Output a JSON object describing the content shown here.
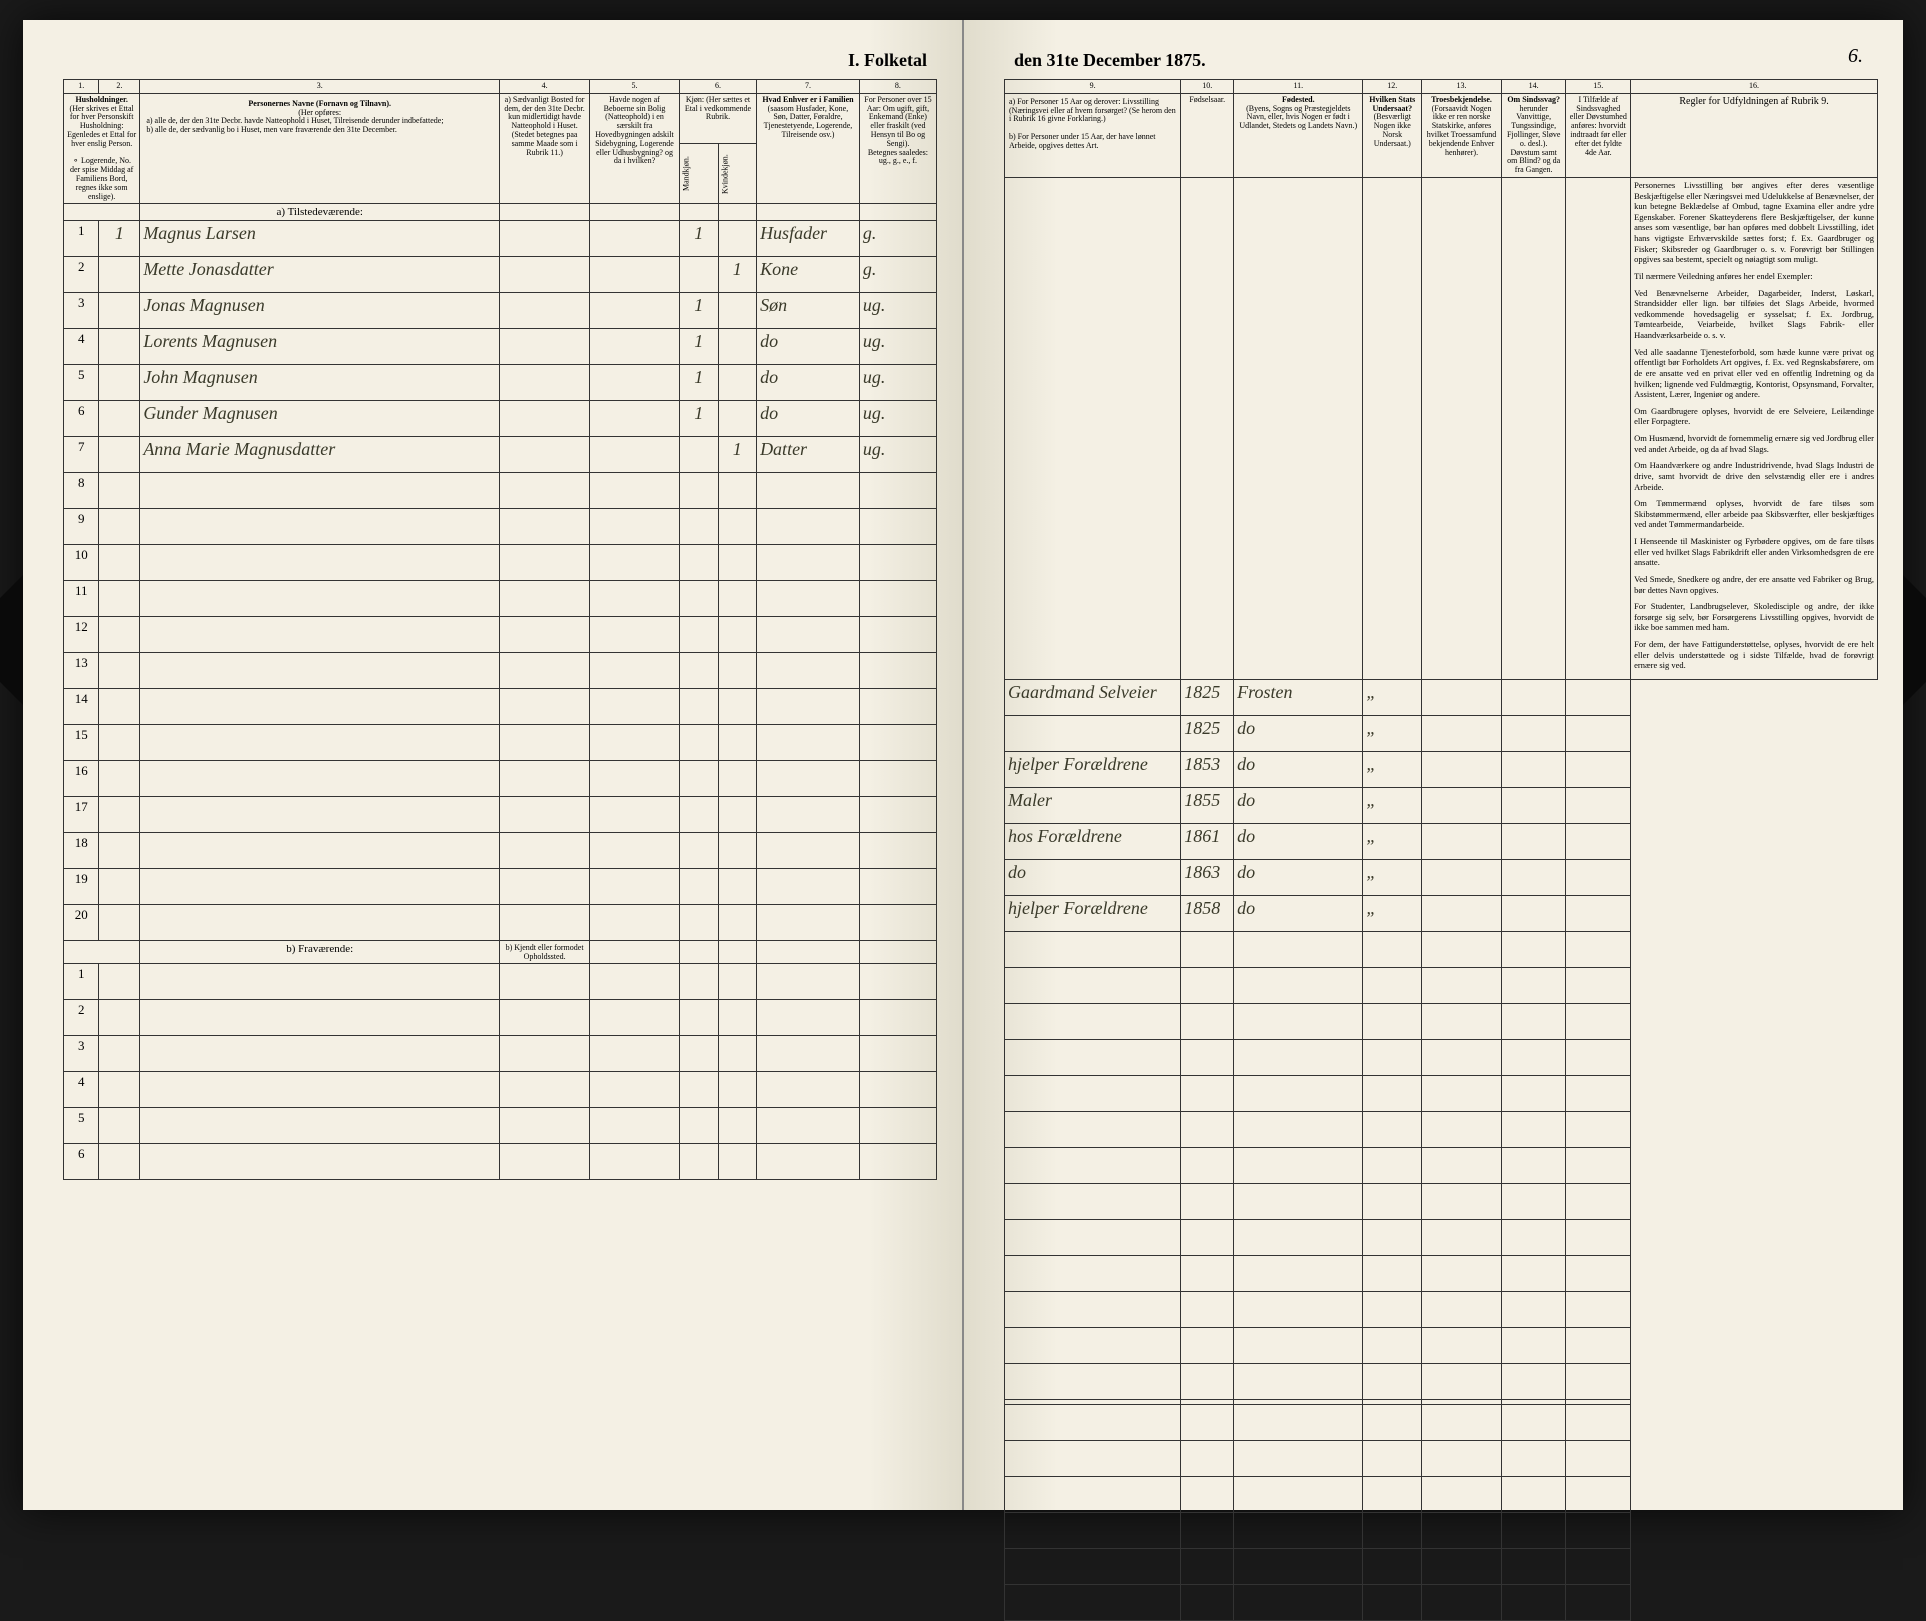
{
  "document": {
    "title_left": "I.  Folketal",
    "title_right": "den 31te December 1875.",
    "page_number_right": "6."
  },
  "columns": {
    "c1": "1.",
    "c2": "2.",
    "c3": "3.",
    "c4": "4.",
    "c5": "5.",
    "c6": "6.",
    "c7": "7.",
    "c8": "8.",
    "c9": "9.",
    "c10": "10.",
    "c11": "11.",
    "c12": "12.",
    "c13": "13.",
    "c14": "14.",
    "c15": "15.",
    "c16": "16."
  },
  "headers": {
    "h1": "Husholdninger.",
    "h1_sub": "(Her skrives et Ettal for hver Personskift Husholdning: Egenledes et Ettal for hver enslig Person.",
    "h1_note": "⚬ Logerende, No. der spise Middag af Familiens Bord, regnes ikke som enslige).",
    "h3_title": "Personernes Navne (Fornavn og Tilnavn).",
    "h3_sub": "(Her opføres:",
    "h3_a": "a) alle de, der den 31te Decbr. havde Natteophold i Huset, Tilreisende derunder indbefattede;",
    "h3_b": "b) alle de, der sædvanlig bo i Huset, men vare fraværende den 31te December.",
    "h4_a": "a) Sædvanligt Bosted for dem, der den 31te Decbr. kun midlertidigt havde Natteophold i Huset.",
    "h4_note": "(Stedet betegnes paa samme Maade som i Rubrik 11.)",
    "h5": "Havde nogen af Beboerne sin Bolig (Natteophold) i en særskilt fra Hovedbygningen adskilt Sidebygning, Logerende eller Udhusbygning? og da i hvilken?",
    "h6": "Kjøn: (Her sættes et Etal i vedkommende Rubrik.",
    "h6_m": "Mandkjøn.",
    "h6_k": "Kvindekjøn.",
    "h7": "Hvad Enhver er i Familien",
    "h7_sub": "(saasom Husfader, Kone, Søn, Datter, Føraldre, Tjenestetyende, Logerende, Tilreisende osv.)",
    "h8": "For Personer over 15 Aar: Om ugift, gift, Enkemand (Enke) eller fraskilt (ved Hensyn til Bo og Sengi).",
    "h8_sub": "Betegnes saaledes: ug., g., e., f.",
    "h9_a": "a) For Personer 15 Aar og derover: Livsstilling (Næringsvei eller af hvem forsørget? (Se herom den i Rubrik 16 givne Forklaring.)",
    "h9_b": "b) For Personer under 15 Aar, der have lønnet Arbeide, opgives dettes Art.",
    "h10": "Fødselsaar.",
    "h11": "Fødested.",
    "h11_sub": "(Byens, Sogns og Præstegjeldets Navn, eller, hvis Nogen er født i Udlandet, Stedets og Landets Navn.)",
    "h12": "Hvilken Stats Undersaat?",
    "h12_sub": "(Besværligt Nogen ikke Norsk Undersaat.)",
    "h13": "Troesbekjendelse.",
    "h13_sub": "(Forsaavidt Nogen ikke er ren norske Statskirke, anføres hvilket Troessamfund bekjendende Enhver henhører).",
    "h14": "Om Sindssvag?",
    "h14_sub": "herunder Vanvittige, Tungssindige, Fjollinger, Sløve o. desl.). Døvstum samt om Blind? og da fra Gangen.",
    "h15": "I Tilfælde af Sindssvaghed eller Døvstumhed anføres: hvorvidt indtraadt før eller efter det fyldte 4de Aar.",
    "h16": "Regler for Udfyldningen af Rubrik 9."
  },
  "sections": {
    "present": "a)  Tilstedeværende:",
    "absent": "b)  Fraværende:",
    "absent_col": "b) Kjendt eller formodet Opholdssted."
  },
  "present_rows": [
    {
      "n": "1",
      "hh": "1",
      "name": "Magnus Larsen",
      "c4": "",
      "c5": "",
      "m": "1",
      "k": "",
      "rel": "Husfader",
      "ms": "g.",
      "occ": "Gaardmand Selveier",
      "yr": "1825",
      "bp": "Frosten",
      "h12": "„",
      "h13": "",
      "h14": "",
      "h15": ""
    },
    {
      "n": "2",
      "hh": "",
      "name": "Mette Jonasdatter",
      "c4": "",
      "c5": "",
      "m": "",
      "k": "1",
      "rel": "Kone",
      "ms": "g.",
      "occ": "",
      "yr": "1825",
      "bp": "do",
      "h12": "„",
      "h13": "",
      "h14": "",
      "h15": ""
    },
    {
      "n": "3",
      "hh": "",
      "name": "Jonas Magnusen",
      "c4": "",
      "c5": "",
      "m": "1",
      "k": "",
      "rel": "Søn",
      "ms": "ug.",
      "occ": "hjelper Forældrene",
      "yr": "1853",
      "bp": "do",
      "h12": "„",
      "h13": "",
      "h14": "",
      "h15": ""
    },
    {
      "n": "4",
      "hh": "",
      "name": "Lorents Magnusen",
      "c4": "",
      "c5": "",
      "m": "1",
      "k": "",
      "rel": "do",
      "ms": "ug.",
      "occ": "Maler",
      "yr": "1855",
      "bp": "do",
      "h12": "„",
      "h13": "",
      "h14": "",
      "h15": ""
    },
    {
      "n": "5",
      "hh": "",
      "name": "John Magnusen",
      "c4": "",
      "c5": "",
      "m": "1",
      "k": "",
      "rel": "do",
      "ms": "ug.",
      "occ": "hos Forældrene",
      "yr": "1861",
      "bp": "do",
      "h12": "„",
      "h13": "",
      "h14": "",
      "h15": ""
    },
    {
      "n": "6",
      "hh": "",
      "name": "Gunder Magnusen",
      "c4": "",
      "c5": "",
      "m": "1",
      "k": "",
      "rel": "do",
      "ms": "ug.",
      "occ": "do",
      "yr": "1863",
      "bp": "do",
      "h12": "„",
      "h13": "",
      "h14": "",
      "h15": ""
    },
    {
      "n": "7",
      "hh": "",
      "name": "Anna Marie Magnusdatter",
      "c4": "",
      "c5": "",
      "m": "",
      "k": "1",
      "rel": "Datter",
      "ms": "ug.",
      "occ": "hjelper Forældrene",
      "yr": "1858",
      "bp": "do",
      "h12": "„",
      "h13": "",
      "h14": "",
      "h15": ""
    }
  ],
  "empty_present_rows": [
    "8",
    "9",
    "10",
    "11",
    "12",
    "13",
    "14",
    "15",
    "16",
    "17",
    "18",
    "19",
    "20"
  ],
  "absent_rows": [
    "1",
    "2",
    "3",
    "4",
    "5",
    "6"
  ],
  "instructions": {
    "p1": "Personernes Livsstilling bør angives efter deres væsentlige Beskjæftigelse eller Næringsvei med Udelukkelse af Benævnelser, der kun betegne Beklædelse af Ombud, tagne Examina eller andre ydre Egenskaber. Forener Skatteyderens flere Beskjæftigelser, der kunne anses som væsentlige, bør han opføres med dobbelt Livsstilling, idet hans vigtigste Erhværvskilde sættes forst; f. Ex. Gaardbruger og Fisker; Skibsreder og Gaardbruger o. s. v. Forøvrigt bør Stillingen opgives saa bestemt, specielt og nøiagtigt som muligt.",
    "p2": "Til nærmere Veiledning anføres her endel Exempler:",
    "p3": "Ved Benævnelserne Arbeider, Dagarbeider, Inderst, Løskarl, Strandsidder eller lign. bør tilføies det Slags Arbeide, hvormed vedkommende hovedsagelig er sysselsat; f. Ex. Jordbrug, Tømtearbeide, Veiarbeide, hvilket Slags Fabrik- eller Haandværksarbeide o. s. v.",
    "p4": "Ved alle saadanne Tjenesteforbold, som hæde kunne være privat og offentligt bør Forholdets Art opgives, f. Ex. ved Regnskabsførere, om de ere ansatte ved en privat eller ved en offentlig Indretning og da hvilken; lignende ved Fuldmægtig, Kontorist, Opsynsmand, Forvalter, Assistent, Lærer, Ingeniør og andere.",
    "p5": "Om Gaardbrugere oplyses, hvorvidt de ere Selveiere, Leilændinge eller Forpagtere.",
    "p6": "Om Husmænd, hvorvidt de fornemmelig ernære sig ved Jordbrug eller ved andet Arbeide, og da af hvad Slags.",
    "p7": "Om Haandværkere og andre Industridrivende, hvad Slags Industri de drive, samt hvorvidt de drive den selvstændig eller ere i andres Arbeide.",
    "p8": "Om Tømmermænd oplyses, hvorvidt de fare tilsøs som Skibstømmermænd, eller arbeide paa Skibsværfter, eller beskjæftiges ved andet Tømmermandarbeide.",
    "p9": "I Henseende til Maskinister og Fyrbødere opgives, om de fare tilsøs eller ved hvilket Slags Fabrikdrift eller anden Virksomhedsgren de ere ansatte.",
    "p10": "Ved Smede, Snedkere og andre, der ere ansatte ved Fabriker og Brug, bør dettes Navn opgives.",
    "p11": "For Studenter, Landbrugselever, Skoledisciple og andre, der ikke forsørge sig selv, bør Forsørgerens Livsstilling opgives, hvorvidt de ikke boe sammen med ham.",
    "p12": "For dem, der have Fattigunderstøttelse, oplyses, hvorvidt de ere helt eller delvis understøttede og i sidste Tilfælde, hvad de forøvrigt ernære sig ved."
  },
  "style": {
    "paper_bg": "#f4f0e4",
    "ink": "#2a2a2a",
    "handwriting": "#3a3a2a",
    "rule": "#333333"
  }
}
